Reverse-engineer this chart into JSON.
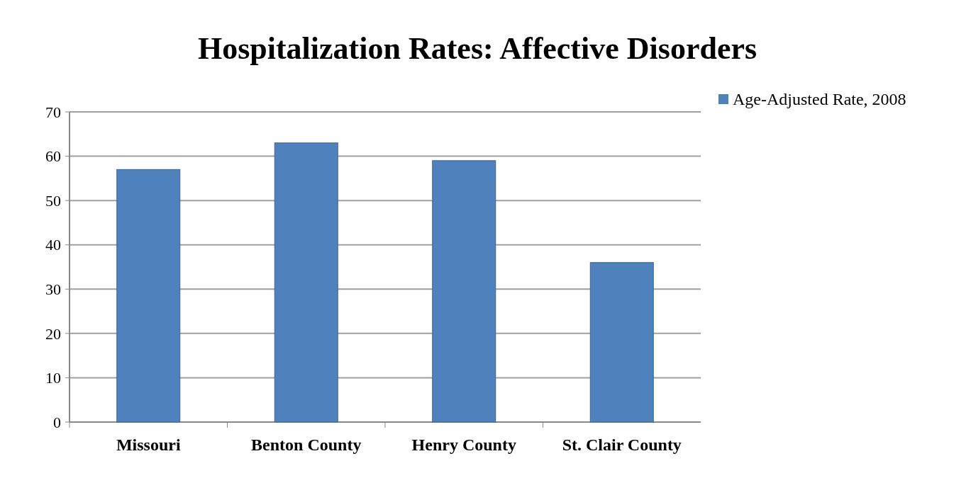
{
  "chart_data": {
    "type": "bar",
    "title": "Hospitalization Rates: Affective Disorders",
    "categories": [
      "Missouri",
      "Benton County",
      "Henry County",
      "St. Clair County"
    ],
    "series": [
      {
        "name": "Age-Adjusted Rate, 2008",
        "color": "#4f81bd",
        "values": [
          57,
          63,
          59,
          36
        ]
      }
    ],
    "ylim": [
      0,
      70
    ],
    "yticks": [
      0,
      10,
      20,
      30,
      40,
      50,
      60,
      70
    ],
    "grid": "y",
    "legend": "top right"
  }
}
